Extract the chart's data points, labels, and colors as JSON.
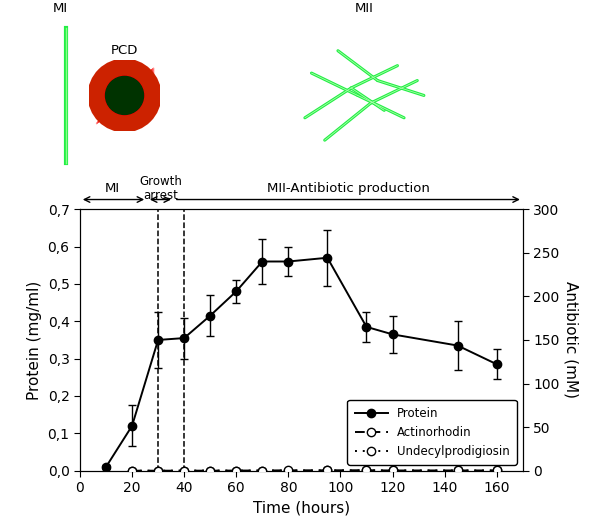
{
  "protein_x": [
    10,
    20,
    30,
    40,
    50,
    60,
    70,
    80,
    95,
    110,
    120,
    145,
    160
  ],
  "protein_y": [
    0.01,
    0.12,
    0.35,
    0.355,
    0.415,
    0.48,
    0.56,
    0.56,
    0.57,
    0.385,
    0.365,
    0.335,
    0.285
  ],
  "protein_yerr": [
    0.005,
    0.055,
    0.075,
    0.055,
    0.055,
    0.03,
    0.06,
    0.04,
    0.075,
    0.04,
    0.05,
    0.065,
    0.04
  ],
  "actino_x": [
    20,
    30,
    40,
    50,
    60,
    70,
    80,
    95,
    110,
    120,
    145,
    160
  ],
  "actino_y": [
    0.0,
    0.0,
    0.01,
    0.035,
    0.16,
    0.195,
    0.44,
    0.445,
    0.545,
    0.23,
    0.295,
    0.245
  ],
  "actino_yerr": [
    0.003,
    0.003,
    0.03,
    0.08,
    0.02,
    0.04,
    0.06,
    0.075,
    0.015,
    0.065,
    0.04,
    0.03
  ],
  "undecyl_x": [
    20,
    30,
    40,
    50,
    60,
    70,
    80,
    95,
    110,
    120,
    145,
    160
  ],
  "undecyl_y": [
    0.0,
    0.0,
    0.125,
    0.15,
    0.16,
    0.185,
    0.195,
    0.28,
    0.35,
    0.295,
    0.275,
    0.24
  ],
  "undecyl_yerr": [
    0.003,
    0.003,
    0.01,
    0.01,
    0.015,
    0.015,
    0.015,
    0.01,
    0.01,
    0.01,
    0.025,
    0.015
  ],
  "xlim": [
    5,
    170
  ],
  "ylim_left": [
    0.0,
    0.7
  ],
  "ylim_right": [
    0,
    300
  ],
  "xlabel": "Time (hours)",
  "ylabel_left": "Protein (mg/ml)",
  "ylabel_right": "Antibiotic (mM)",
  "xticks": [
    0,
    20,
    40,
    60,
    80,
    100,
    120,
    140,
    160
  ],
  "yticks_left": [
    0.0,
    0.1,
    0.2,
    0.3,
    0.4,
    0.5,
    0.6,
    0.7
  ],
  "yticks_right": [
    0,
    50,
    100,
    150,
    200,
    250,
    300
  ],
  "ytick_labels_left": [
    "0,0",
    "0,1",
    "0,2",
    "0,3",
    "0,4",
    "0,5",
    "0,6",
    "0,7"
  ],
  "ytick_labels_right": [
    "0",
    "50",
    "100",
    "150",
    "200",
    "250",
    "300"
  ],
  "vline1_x": 30,
  "vline2_x": 40,
  "legend_protein": "Protein",
  "legend_actino": "Actinorhodin",
  "legend_undecyl": "Undecylprodigiosin",
  "background_color": "#ffffff"
}
